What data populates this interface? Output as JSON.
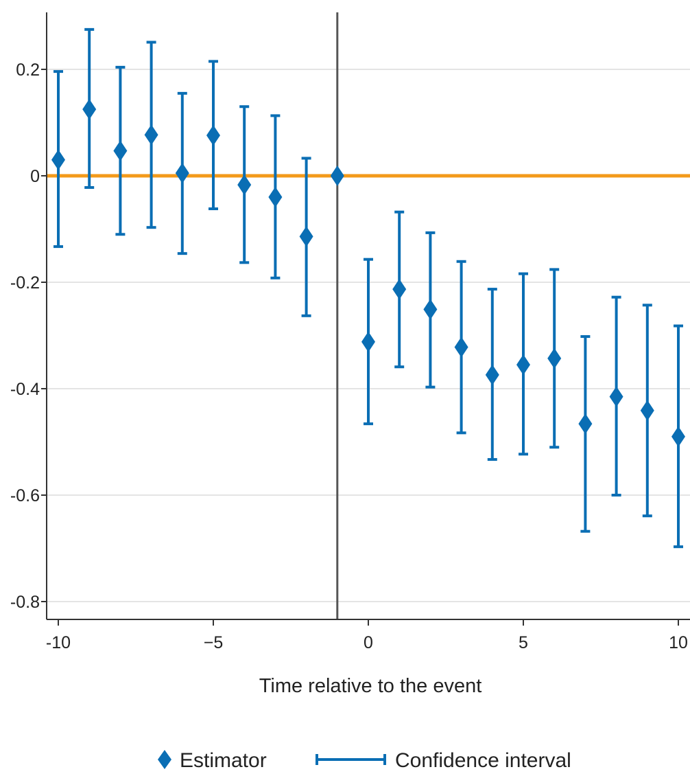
{
  "chart_data": {
    "type": "scatter",
    "title": "",
    "xlabel": "Time relative to the event",
    "ylabel": "",
    "xlim": [
      -10,
      10
    ],
    "ylim": [
      -0.8,
      0.2
    ],
    "x_ticks": [
      -10,
      -5,
      0,
      5,
      10
    ],
    "x_tick_labels": [
      "-10",
      "−5",
      "0",
      "5",
      "10"
    ],
    "y_ticks": [
      0.2,
      0,
      -0.2,
      -0.4,
      -0.6,
      -0.8
    ],
    "y_tick_labels": [
      "0.2",
      "0",
      "-0.2",
      "-0.4",
      "-0.6",
      "-0.8"
    ],
    "grid": "horizontal",
    "reference_lines": {
      "horizontal_zero": 0,
      "vertical_event": -1
    },
    "colors": {
      "series": "#0a6eb4",
      "zero_line": "#f39a1b",
      "event_line": "#555555",
      "grid": "#e4e4e4",
      "axis": "#333333"
    },
    "legend": {
      "placement": "bottom-center",
      "estimator_label": "Estimator",
      "ci_label": "Confidence interval"
    },
    "series": [
      {
        "name": "Estimator",
        "points": [
          {
            "x": -10,
            "y": 0.03,
            "lo": -0.133,
            "hi": 0.196
          },
          {
            "x": -9,
            "y": 0.125,
            "lo": -0.022,
            "hi": 0.275
          },
          {
            "x": -8,
            "y": 0.047,
            "lo": -0.11,
            "hi": 0.204
          },
          {
            "x": -7,
            "y": 0.077,
            "lo": -0.097,
            "hi": 0.251
          },
          {
            "x": -6,
            "y": 0.005,
            "lo": -0.146,
            "hi": 0.155
          },
          {
            "x": -5,
            "y": 0.076,
            "lo": -0.062,
            "hi": 0.215
          },
          {
            "x": -4,
            "y": -0.017,
            "lo": -0.163,
            "hi": 0.13
          },
          {
            "x": -3,
            "y": -0.04,
            "lo": -0.192,
            "hi": 0.113
          },
          {
            "x": -2,
            "y": -0.114,
            "lo": -0.263,
            "hi": 0.033
          },
          {
            "x": -1,
            "y": 0.0
          },
          {
            "x": 0,
            "y": -0.312,
            "lo": -0.466,
            "hi": -0.157
          },
          {
            "x": 1,
            "y": -0.213,
            "lo": -0.359,
            "hi": -0.068
          },
          {
            "x": 2,
            "y": -0.251,
            "lo": -0.397,
            "hi": -0.107
          },
          {
            "x": 3,
            "y": -0.322,
            "lo": -0.483,
            "hi": -0.161
          },
          {
            "x": 4,
            "y": -0.374,
            "lo": -0.533,
            "hi": -0.213
          },
          {
            "x": 5,
            "y": -0.355,
            "lo": -0.523,
            "hi": -0.184
          },
          {
            "x": 6,
            "y": -0.343,
            "lo": -0.51,
            "hi": -0.176
          },
          {
            "x": 7,
            "y": -0.466,
            "lo": -0.668,
            "hi": -0.302
          },
          {
            "x": 8,
            "y": -0.415,
            "lo": -0.6,
            "hi": -0.228
          },
          {
            "x": 9,
            "y": -0.441,
            "lo": -0.639,
            "hi": -0.243
          },
          {
            "x": 10,
            "y": -0.49,
            "lo": -0.697,
            "hi": -0.282
          }
        ]
      }
    ]
  }
}
